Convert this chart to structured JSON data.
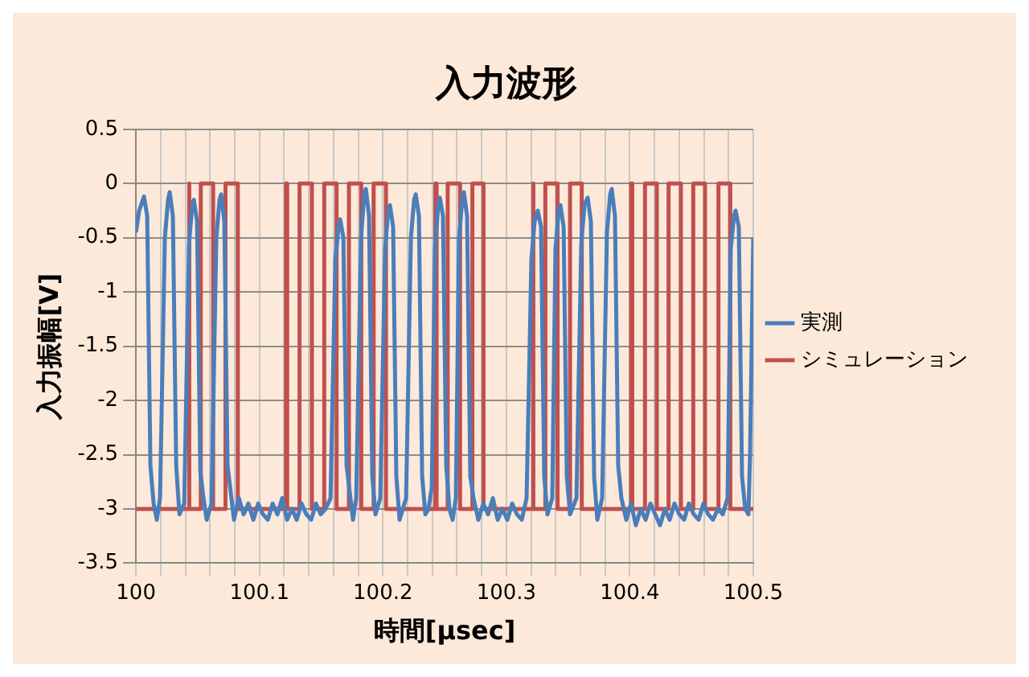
{
  "chart_data": {
    "type": "line",
    "title": "入力波形",
    "xlabel": "時間[μsec]",
    "ylabel": "入力振幅[V]",
    "xlim": [
      100,
      100.5
    ],
    "xticks": [
      100,
      {
        "value": 100.02,
        "label": null
      },
      {
        "value": 100.04,
        "label": null
      },
      {
        "value": 100.06,
        "label": null
      },
      {
        "value": 100.08,
        "label": null
      },
      100.1,
      {
        "value": 100.12,
        "label": null
      },
      {
        "value": 100.14,
        "label": null
      },
      {
        "value": 100.16,
        "label": null
      },
      {
        "value": 100.18,
        "label": null
      },
      100.2,
      {
        "value": 100.22,
        "label": null
      },
      {
        "value": 100.24,
        "label": null
      },
      {
        "value": 100.26,
        "label": null
      },
      {
        "value": 100.28,
        "label": null
      },
      100.3,
      {
        "value": 100.32,
        "label": null
      },
      {
        "value": 100.34,
        "label": null
      },
      {
        "value": 100.36,
        "label": null
      },
      {
        "value": 100.38,
        "label": null
      },
      100.4,
      {
        "value": 100.42,
        "label": null
      },
      {
        "value": 100.44,
        "label": null
      },
      {
        "value": 100.46,
        "label": null
      },
      {
        "value": 100.48,
        "label": null
      },
      100.5
    ],
    "ylim": [
      -3.5,
      0.5
    ],
    "yticks": [
      0.5,
      0,
      -0.5,
      -1,
      -1.5,
      -2,
      -2.5,
      -3,
      -3.5
    ],
    "grid": true,
    "legend": "right",
    "series": [
      {
        "name": "実測",
        "color": "#4a7ebb",
        "x": [
          100,
          100.0026,
          100.0065,
          100.0091,
          100.0117,
          100.0143,
          100.0169,
          100.0195,
          100.0234,
          100.026,
          100.0273,
          100.0299,
          100.0326,
          100.0352,
          100.0391,
          100.043,
          100.0456,
          100.0469,
          100.0495,
          100.0521,
          100.0547,
          100.0573,
          100.0612,
          100.0651,
          100.0677,
          100.069,
          100.0716,
          100.0742,
          100.0768,
          100.0794,
          100.0833,
          100.0872,
          100.0911,
          100.0951,
          100.099,
          100.1029,
          100.1068,
          100.1107,
          100.1146,
          100.1185,
          100.1224,
          100.1263,
          100.1302,
          100.1341,
          100.138,
          100.1419,
          100.1458,
          100.1497,
          100.1536,
          100.1576,
          100.1615,
          100.1641,
          100.1654,
          100.168,
          100.1706,
          100.1732,
          100.1758,
          100.1784,
          100.1823,
          100.1849,
          100.1862,
          100.1888,
          100.1914,
          100.194,
          100.1979,
          100.2018,
          100.2044,
          100.2057,
          100.2083,
          100.2109,
          100.2135,
          100.2188,
          100.2227,
          100.2253,
          100.2266,
          100.2292,
          100.2318,
          100.2344,
          100.237,
          100.2396,
          100.2422,
          100.2448,
          100.2461,
          100.2487,
          100.2513,
          100.2539,
          100.2565,
          100.2591,
          100.2617,
          100.2643,
          100.2656,
          100.2682,
          100.2708,
          100.2734,
          100.2773,
          100.2813,
          100.2852,
          100.2891,
          100.293,
          100.2969,
          100.3008,
          100.3047,
          100.3086,
          100.3125,
          100.3164,
          100.3203,
          100.3229,
          100.3255,
          100.3281,
          100.3307,
          100.3333,
          100.3372,
          100.3398,
          100.3424,
          100.3438,
          100.3464,
          100.349,
          100.3516,
          100.3568,
          100.3607,
          100.3633,
          100.3659,
          100.3685,
          100.3711,
          100.3737,
          100.3776,
          100.3815,
          100.3841,
          100.3854,
          100.388,
          100.3906,
          100.3932,
          100.3971,
          100.401,
          100.4049,
          100.4089,
          100.4128,
          100.4167,
          100.4206,
          100.4245,
          100.4284,
          100.4323,
          100.4362,
          100.4401,
          100.444,
          100.4479,
          100.4518,
          100.4557,
          100.4596,
          100.4635,
          100.4674,
          100.4714,
          100.4753,
          100.4792,
          100.4818,
          100.4844,
          100.4857,
          100.4883,
          100.4909,
          100.4935,
          100.4961,
          100.4974,
          100.5
        ],
        "values": [
          -0.45,
          -0.25,
          -0.12,
          -0.3,
          -2.6,
          -2.95,
          -3.1,
          -2.9,
          -0.5,
          -0.15,
          -0.08,
          -0.3,
          -2.6,
          -3.05,
          -2.95,
          -0.55,
          -0.2,
          -0.15,
          -0.35,
          -2.65,
          -2.9,
          -3.1,
          -2.95,
          -0.5,
          -0.15,
          -0.1,
          -0.35,
          -2.6,
          -2.85,
          -3.1,
          -2.9,
          -3.05,
          -2.95,
          -3.1,
          -2.95,
          -3.05,
          -3.1,
          -2.95,
          -3.05,
          -2.9,
          -3.1,
          -3,
          -3.1,
          -2.95,
          -3.05,
          -3.1,
          -2.95,
          -3.05,
          -3,
          -2.9,
          -0.7,
          -0.4,
          -0.33,
          -0.5,
          -2.6,
          -2.85,
          -3.1,
          -2.9,
          -0.5,
          -0.1,
          -0.05,
          -0.3,
          -2.7,
          -3.05,
          -2.9,
          -0.6,
          -0.25,
          -0.2,
          -0.4,
          -2.7,
          -3.1,
          -2.9,
          -0.5,
          -0.15,
          -0.1,
          -0.3,
          -2.7,
          -3.05,
          -3,
          -2.8,
          -0.6,
          -0.2,
          -0.13,
          -0.3,
          -2.6,
          -3,
          -3.1,
          -2.9,
          -0.5,
          -0.15,
          -0.08,
          -0.3,
          -2.7,
          -2.9,
          -3.1,
          -2.95,
          -3.05,
          -2.9,
          -3.1,
          -3,
          -3.1,
          -2.95,
          -3.05,
          -3.1,
          -2.9,
          -0.7,
          -0.35,
          -0.25,
          -0.4,
          -2.7,
          -3.05,
          -2.9,
          -0.6,
          -0.25,
          -0.2,
          -0.4,
          -2.7,
          -3.05,
          -2.9,
          -0.55,
          -0.2,
          -0.13,
          -0.35,
          -2.7,
          -3.1,
          -2.9,
          -0.45,
          -0.1,
          -0.05,
          -0.3,
          -2.6,
          -2.9,
          -3.1,
          -2.95,
          -3.15,
          -3,
          -3.1,
          -2.95,
          -3.05,
          -3.15,
          -3,
          -3.1,
          -2.95,
          -3.05,
          -3.1,
          -2.95,
          -3.05,
          -3.1,
          -2.95,
          -3.05,
          -3.1,
          -3,
          -3.05,
          -2.9,
          -0.6,
          -0.3,
          -0.25,
          -0.4,
          -2.7,
          -3,
          -3.05,
          -2.5,
          -0.5
        ]
      },
      {
        "name": "シミュレーション",
        "color": "#c0504d",
        "x": [
          100,
          100.0425,
          100.0425,
          100.0435,
          100.0435,
          100.0525,
          100.0525,
          100.0625,
          100.0625,
          100.0725,
          100.0725,
          100.0825,
          100.0825,
          100.1215,
          100.1215,
          100.1225,
          100.1225,
          100.1325,
          100.1325,
          100.1425,
          100.1425,
          100.1525,
          100.1525,
          100.1625,
          100.1625,
          100.1725,
          100.1725,
          100.1825,
          100.1825,
          100.1925,
          100.1925,
          100.2025,
          100.2025,
          100.2425,
          100.2425,
          100.2435,
          100.2435,
          100.2525,
          100.2525,
          100.2625,
          100.2625,
          100.2725,
          100.2725,
          100.2815,
          100.2815,
          100.3212,
          100.3212,
          100.3222,
          100.3222,
          100.3316,
          100.3316,
          100.3415,
          100.3415,
          100.3516,
          100.3516,
          100.3611,
          100.3611,
          100.401,
          100.401,
          100.402,
          100.402,
          100.4123,
          100.4123,
          100.4219,
          100.4219,
          100.4314,
          100.4314,
          100.4414,
          100.4414,
          100.4514,
          100.4514,
          100.4609,
          100.4609,
          100.4718,
          100.4718,
          100.4814,
          100.4814,
          100.5
        ],
        "values": [
          -3,
          -3,
          0,
          0,
          -3,
          -3,
          0,
          0,
          -3,
          -3,
          0,
          0,
          -3,
          -3,
          0,
          0,
          -3,
          -3,
          0,
          0,
          -3,
          -3,
          0,
          0,
          -3,
          -3,
          0,
          0,
          -3,
          -3,
          0,
          0,
          -3,
          -3,
          0,
          0,
          -3,
          -3,
          0,
          0,
          -3,
          -3,
          0,
          0,
          -3,
          -3,
          0,
          0,
          -3,
          -3,
          0,
          0,
          -3,
          -3,
          0,
          0,
          -3,
          -3,
          0,
          0,
          -3,
          -3,
          0,
          0,
          -3,
          -3,
          0,
          0,
          -3,
          -3,
          0,
          0,
          -3,
          -3,
          0,
          0,
          -3,
          -3
        ]
      }
    ]
  }
}
